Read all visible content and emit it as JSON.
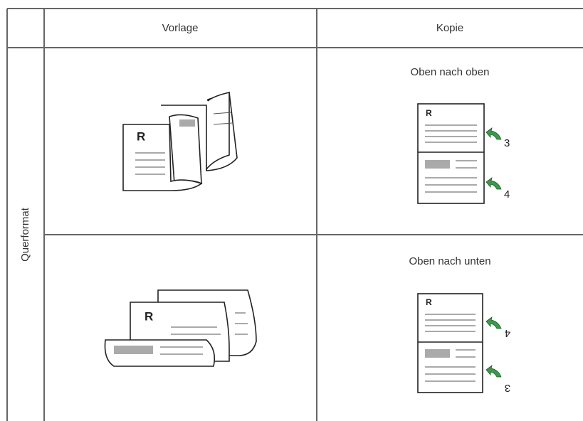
{
  "table": {
    "header": {
      "original": "Vorlage",
      "copy": "Kopie"
    },
    "row_label": "Querformat",
    "rows": [
      {
        "caption": "Oben nach oben",
        "original_mark": "R",
        "copy_mark": "R",
        "page_numbers": [
          "3",
          "4"
        ]
      },
      {
        "caption": "Oben nach unten",
        "original_mark": "R",
        "copy_mark": "R",
        "page_numbers": [
          "4",
          "3"
        ]
      }
    ]
  }
}
